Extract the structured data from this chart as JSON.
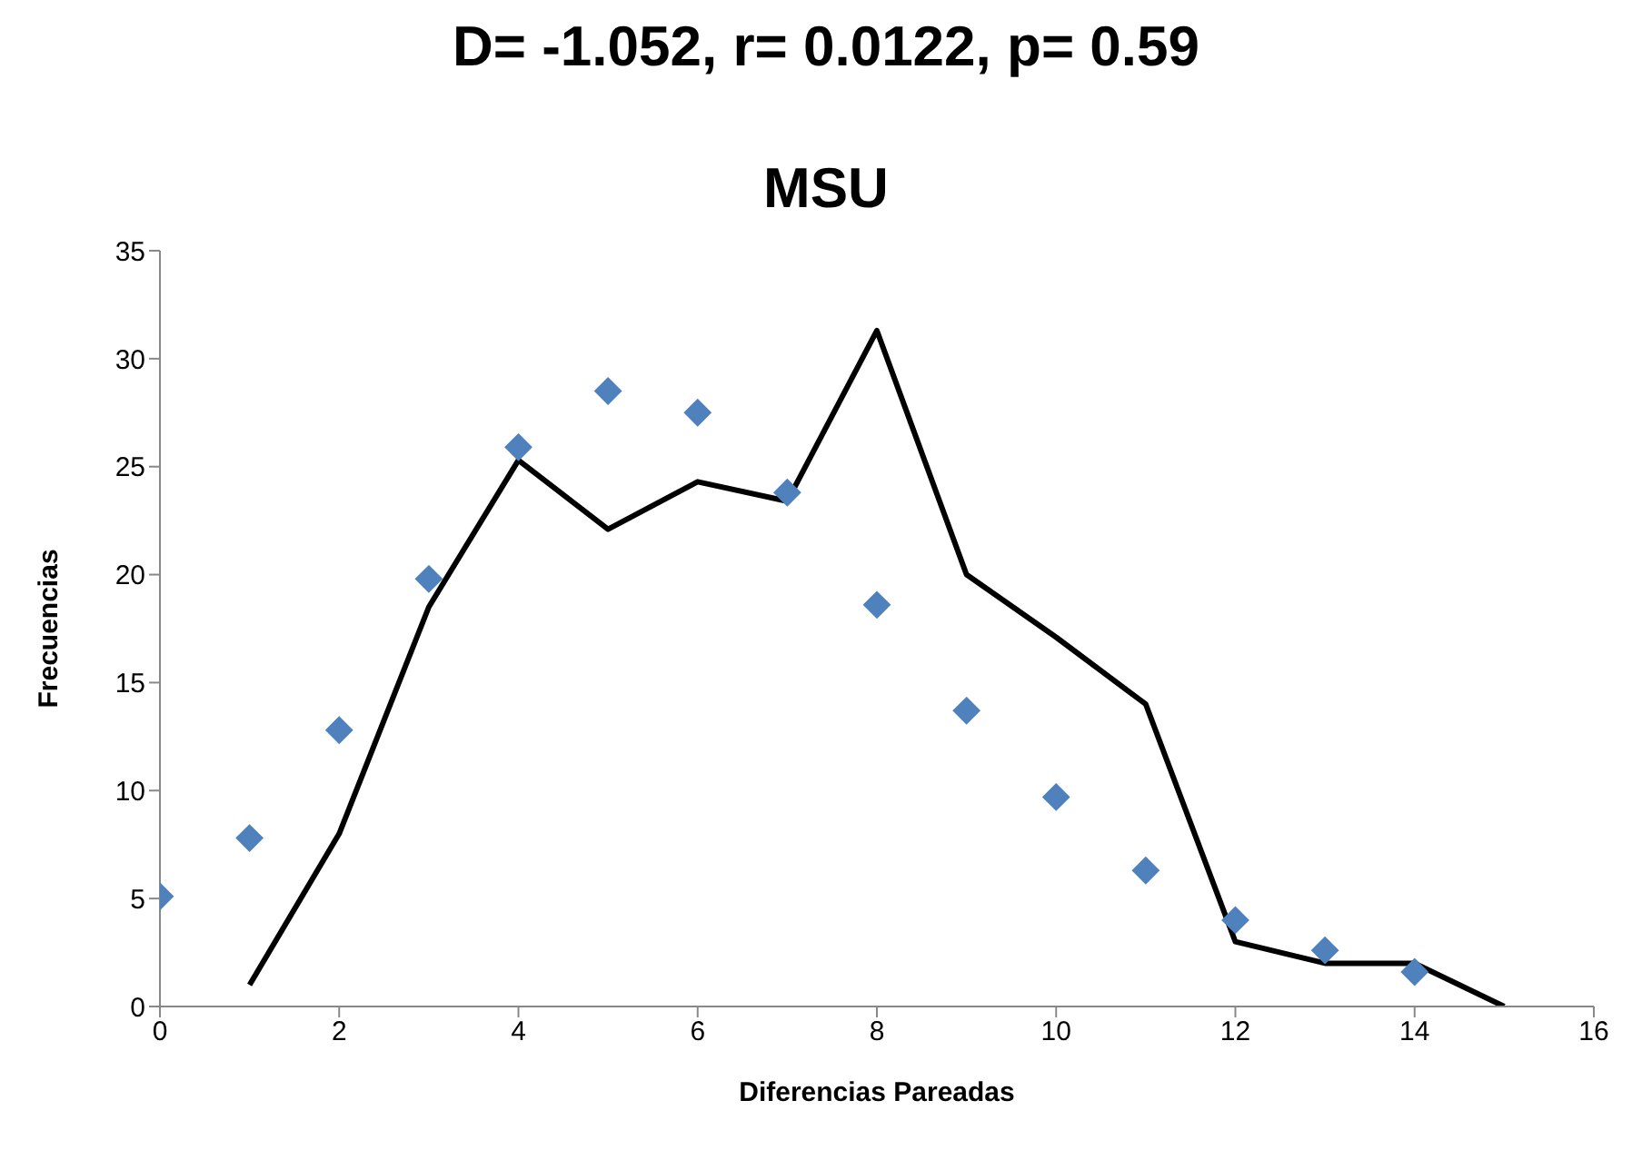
{
  "chart_data": {
    "type": "line",
    "title": "D= -1.052, r= 0.0122, p= 0.59",
    "subtitle": "MSU",
    "xlabel": "Diferencias Pareadas",
    "ylabel": "Frecuencias",
    "xlim": [
      0,
      16
    ],
    "xticks": [
      0,
      2,
      4,
      6,
      8,
      10,
      12,
      14,
      16
    ],
    "ylim": [
      0,
      35
    ],
    "yticks": [
      0,
      5,
      10,
      15,
      20,
      25,
      30,
      35
    ],
    "grid": false,
    "legend": false,
    "series": [
      {
        "type": "scatter",
        "marker": "diamond",
        "color": "#4f81bd",
        "x": [
          0,
          1,
          2,
          3,
          4,
          5,
          6,
          7,
          8,
          9,
          10,
          11,
          12,
          13,
          14
        ],
        "values": [
          5.1,
          7.8,
          12.8,
          19.8,
          25.9,
          28.5,
          27.5,
          23.8,
          18.6,
          13.7,
          9.7,
          6.3,
          4,
          2.6,
          1.6
        ]
      },
      {
        "marker": "none",
        "line_style": "solid",
        "color": "#000000",
        "x": [
          1,
          2,
          3,
          4,
          5,
          6,
          7,
          8,
          9,
          10,
          11,
          12,
          13,
          14,
          15
        ],
        "values": [
          1,
          8,
          18.5,
          25.3,
          22.1,
          24.3,
          23.4,
          31.3,
          20,
          17.1,
          14,
          3,
          2,
          2,
          0
        ]
      }
    ]
  }
}
